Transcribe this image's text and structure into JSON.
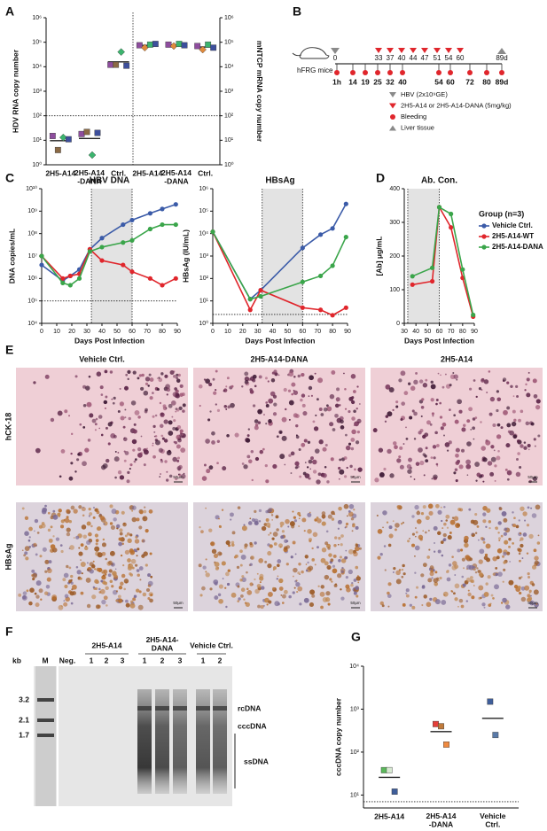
{
  "chart_data": [
    {
      "panel": "A",
      "type": "scatter",
      "ylog": true,
      "categories": [
        "2H5-A14",
        "2H5-A14\n-DANA",
        "Ctrl.",
        "2H5-A14",
        "2H5-A14\n-DANA",
        "Ctrl."
      ],
      "ylabel": "HDV RNA copy number",
      "y2label": "mNTCP mRNA copy number",
      "ylim": [
        1,
        1000000
      ],
      "yticks": [
        {
          "value": 1,
          "label": "10⁰"
        },
        {
          "value": 10,
          "label": "10¹"
        },
        {
          "value": 100,
          "label": "10²"
        },
        {
          "value": 1000,
          "label": "10³"
        },
        {
          "value": 10000,
          "label": "10⁴"
        },
        {
          "value": 100000,
          "label": "10⁵"
        },
        {
          "value": 1000000,
          "label": "10⁶"
        }
      ],
      "y2lim": [
        1,
        1000000
      ],
      "y2ticks": [
        {
          "value": 1,
          "label": "10⁰"
        },
        {
          "value": 10,
          "label": "10¹"
        },
        {
          "value": 100,
          "label": "10²"
        },
        {
          "value": 1000,
          "label": "10³"
        },
        {
          "value": 10000,
          "label": "10⁴"
        },
        {
          "value": 100000,
          "label": "10⁵"
        },
        {
          "value": 1000000,
          "label": "10⁶"
        }
      ],
      "reference_line": 100,
      "mean_lines": true,
      "series": [
        {
          "color": "#8e4d9e",
          "marker": "square",
          "values": [
            15,
            18,
            12000,
            null,
            null,
            null
          ]
        },
        {
          "color": "#8b6a45",
          "marker": "square",
          "values": [
            4,
            22,
            12000,
            null,
            null,
            null
          ]
        },
        {
          "color": "#3cb46e",
          "marker": "diamond",
          "values": [
            13,
            2.5,
            40000,
            null,
            null,
            null
          ]
        },
        {
          "color": "#3d4f9c",
          "marker": "square",
          "values": [
            11,
            20,
            11000,
            null,
            null,
            null
          ]
        },
        {
          "color": "#8e4d9e",
          "marker": "square",
          "axis": "y2",
          "values": [
            null,
            null,
            null,
            75000,
            80000,
            70000
          ]
        },
        {
          "color": "#e08a3c",
          "marker": "diamond",
          "axis": "y2",
          "values": [
            null,
            null,
            null,
            60000,
            70000,
            50000
          ]
        },
        {
          "color": "#3cb46e",
          "marker": "square",
          "axis": "y2",
          "values": [
            null,
            null,
            null,
            80000,
            85000,
            80000
          ]
        },
        {
          "color": "#3d4f9c",
          "marker": "square",
          "axis": "y2",
          "values": [
            null,
            null,
            null,
            85000,
            75000,
            60000
          ]
        }
      ]
    },
    {
      "panel": "C",
      "type": "line",
      "title": "HBV DNA",
      "ylog": true,
      "ylabel": "DNA copies/mL",
      "xlabel": "Days Post Infection",
      "xlim": [
        0,
        90
      ],
      "xticks": [
        0,
        10,
        20,
        30,
        40,
        50,
        60,
        70,
        80,
        90
      ],
      "ylim": [
        10000,
        10000000000
      ],
      "yticks": [
        {
          "value": 10000,
          "label": "10⁴"
        },
        {
          "value": 100000,
          "label": "10⁵"
        },
        {
          "value": 1000000,
          "label": "10⁶"
        },
        {
          "value": 10000000,
          "label": "10⁷"
        },
        {
          "value": 100000000,
          "label": "10⁸"
        },
        {
          "value": 1000000000,
          "label": "10⁹"
        },
        {
          "value": 10000000000,
          "label": "10¹⁰"
        }
      ],
      "shade": [
        33,
        60
      ],
      "reference_line": 100000,
      "x": [
        0,
        14,
        19,
        25,
        32,
        40,
        54,
        60,
        72,
        80,
        89
      ],
      "series": [
        {
          "color": "#3b5ba8",
          "values": [
            4000000,
            800000,
            1300000,
            2500000,
            20000000,
            63000000,
            250000000,
            400000000,
            800000000,
            1250000000,
            2000000000
          ]
        },
        {
          "color": "#e0262c",
          "values": [
            10000000,
            1000000,
            1300000,
            1600000,
            20000000,
            6300000,
            4000000,
            2000000,
            1000000,
            500000,
            1000000
          ]
        },
        {
          "color": "#3aa54a",
          "values": [
            10000000,
            630000,
            500000,
            1000000,
            16000000,
            25000000,
            40000000,
            50000000,
            160000000,
            250000000,
            250000000
          ]
        }
      ]
    },
    {
      "type": "line",
      "title": "HBsAg",
      "ylog": true,
      "ylabel": "HBsAg (IU/mL)",
      "xlabel": "Days Post Infection",
      "xlim": [
        0,
        90
      ],
      "xticks": [
        0,
        10,
        20,
        30,
        40,
        50,
        60,
        70,
        80,
        90
      ],
      "ylim": [
        1,
        1000000
      ],
      "yticks": [
        {
          "value": 1,
          "label": "10⁰"
        },
        {
          "value": 10,
          "label": "10¹"
        },
        {
          "value": 100,
          "label": "10²"
        },
        {
          "value": 1000,
          "label": "10³"
        },
        {
          "value": 10000,
          "label": "10⁴"
        },
        {
          "value": 100000,
          "label": "10⁵"
        },
        {
          "value": 1000000,
          "label": "10⁶"
        }
      ],
      "shade": [
        33,
        60
      ],
      "reference_line": 2.5,
      "x": [
        0,
        25,
        32,
        60,
        72,
        80,
        89
      ],
      "series": [
        {
          "color": "#3b5ba8",
          "values": [
            12000,
            12,
            30,
            2300,
            9000,
            17000,
            210000
          ]
        },
        {
          "color": "#e0262c",
          "values": [
            12000,
            4,
            30,
            5,
            4,
            2.3,
            5
          ]
        },
        {
          "color": "#3aa54a",
          "values": [
            12000,
            12,
            16,
            70,
            130,
            370,
            7000
          ]
        }
      ]
    },
    {
      "panel": "D",
      "type": "line",
      "title": "Ab. Con.",
      "ylabel": "[Ab] μg/mL",
      "xlabel": "Days Post Infection",
      "xlim": [
        30,
        90
      ],
      "xticks": [
        30,
        40,
        50,
        60,
        70,
        80,
        90
      ],
      "ylim": [
        0,
        400
      ],
      "yticks": [
        0,
        100,
        200,
        300,
        400
      ],
      "shade": [
        33,
        60
      ],
      "legend_title": "Group (n=3)",
      "x": [
        37,
        54,
        60,
        70,
        80,
        89
      ],
      "series": [
        {
          "name": "Vehicle Ctrl.",
          "color": "#3b5ba8",
          "values": [
            null,
            null,
            null,
            null,
            null,
            null
          ]
        },
        {
          "name": "2H5-A14-WT",
          "color": "#e0262c",
          "values": [
            115,
            125,
            345,
            285,
            135,
            20
          ]
        },
        {
          "name": "2H5-A14-DANA",
          "color": "#3aa54a",
          "values": [
            140,
            165,
            345,
            325,
            160,
            25
          ]
        }
      ]
    },
    {
      "panel": "G",
      "type": "scatter",
      "ylog": true,
      "categories": [
        "2H5-A14",
        "2H5-A14\n-DANA",
        "Vehicle\nCtrl."
      ],
      "ylabel": "cccDNA copy number",
      "ylim": [
        5,
        10000
      ],
      "yticks": [
        {
          "value": 10,
          "label": "10¹"
        },
        {
          "value": 100,
          "label": "10²"
        },
        {
          "value": 1000,
          "label": "10³"
        },
        {
          "value": 10000,
          "label": "10⁴"
        }
      ],
      "reference_line": 7,
      "mean_lines": true,
      "series": [
        {
          "marker": "square",
          "colors": [
            "#5bb85b",
            "#e5403a",
            "#3f5e9a"
          ],
          "values": [
            38,
            450,
            1500
          ]
        },
        {
          "marker": "square",
          "colors": [
            "#d8ead2",
            "#c07a3a",
            "#5a7aa8"
          ],
          "values": [
            38,
            400,
            250
          ]
        },
        {
          "marker": "square",
          "colors": [
            "#3f5e9a",
            "#f08a40",
            "#5a7aa8"
          ],
          "values": [
            12,
            150,
            null
          ]
        }
      ]
    }
  ],
  "timeline": {
    "panel": "B",
    "subject": "hFRG mice",
    "start": "0",
    "dose_days": [
      "33",
      "37",
      "40",
      "44",
      "47",
      "51",
      "54",
      "60"
    ],
    "end": "89d",
    "bleed_days": [
      "1h",
      "14",
      "19",
      "25",
      "32",
      "40",
      "54",
      "60",
      "72",
      "80",
      "89d"
    ],
    "legend": [
      "HBV (2x10⁹GE)",
      "2H5-A14 or 2H5-A14-DANA (5mg/kg)",
      "Bleeding",
      "Liver tissue"
    ]
  },
  "histology": {
    "panel": "E",
    "columns": [
      "Vehicle Ctrl.",
      "2H5-A14-DANA",
      "2H5-A14"
    ],
    "rows": [
      "hCK-18",
      "HBsAg"
    ],
    "scale_bar": "50μm"
  },
  "blot": {
    "panel": "F",
    "kb_label": "kb",
    "marker_lane": "M",
    "negative_lane": "Neg.",
    "groups": [
      {
        "name": "2H5-A14",
        "lanes": [
          "1",
          "2",
          "3"
        ]
      },
      {
        "name": "2H5-A14-\nDANA",
        "lanes": [
          "1",
          "2",
          "3"
        ]
      },
      {
        "name": "Vehicle Ctrl.",
        "lanes": [
          "1",
          "2"
        ]
      }
    ],
    "sizes": [
      "3.2",
      "2.1",
      "1.7"
    ],
    "bands": [
      "rcDNA",
      "cccDNA",
      "ssDNA"
    ]
  }
}
